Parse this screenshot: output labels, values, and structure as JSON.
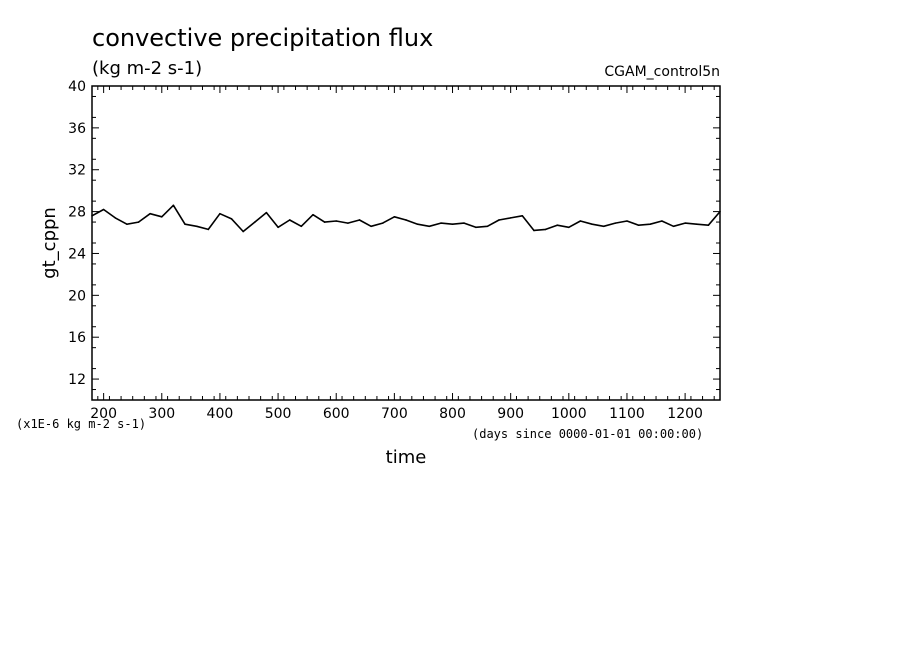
{
  "chart_data": {
    "type": "line",
    "title": "convective precipitation flux",
    "subtitle": "(kg m-2 s-1)",
    "run_label": "CGAM_control5n",
    "xlabel": "time",
    "x_units": "(days since 0000-01-01 00:00:00)",
    "ylabel": "gt_cppn",
    "y_scale_note": "(x1E-6 kg m-2 s-1)",
    "xlim": [
      180,
      1260
    ],
    "ylim": [
      10,
      40
    ],
    "x_ticks": [
      200,
      300,
      400,
      500,
      600,
      700,
      800,
      900,
      1000,
      1100,
      1200
    ],
    "y_ticks": [
      12,
      16,
      20,
      24,
      28,
      32,
      36,
      40
    ],
    "grid": false,
    "series": [
      {
        "name": "",
        "x": [
          180,
          200,
          220,
          240,
          260,
          280,
          300,
          320,
          340,
          360,
          380,
          400,
          420,
          440,
          460,
          480,
          500,
          520,
          540,
          560,
          580,
          600,
          620,
          640,
          660,
          680,
          700,
          720,
          740,
          760,
          780,
          800,
          820,
          840,
          860,
          880,
          900,
          920,
          940,
          960,
          980,
          1000,
          1020,
          1040,
          1060,
          1080,
          1100,
          1120,
          1140,
          1160,
          1180,
          1200,
          1220,
          1240,
          1260
        ],
        "y": [
          27.6,
          28.2,
          27.4,
          26.8,
          27.0,
          27.8,
          27.5,
          28.6,
          26.8,
          26.6,
          26.3,
          27.8,
          27.3,
          26.1,
          27.0,
          27.9,
          26.5,
          27.2,
          26.6,
          27.7,
          27.0,
          27.1,
          26.9,
          27.2,
          26.6,
          26.9,
          27.5,
          27.2,
          26.8,
          26.6,
          26.9,
          26.8,
          26.9,
          26.5,
          26.6,
          27.2,
          27.4,
          27.6,
          26.2,
          26.3,
          26.7,
          26.5,
          27.1,
          26.8,
          26.6,
          26.9,
          27.1,
          26.7,
          26.8,
          27.1,
          26.6,
          26.9,
          26.8,
          26.7,
          28.0
        ]
      }
    ]
  }
}
